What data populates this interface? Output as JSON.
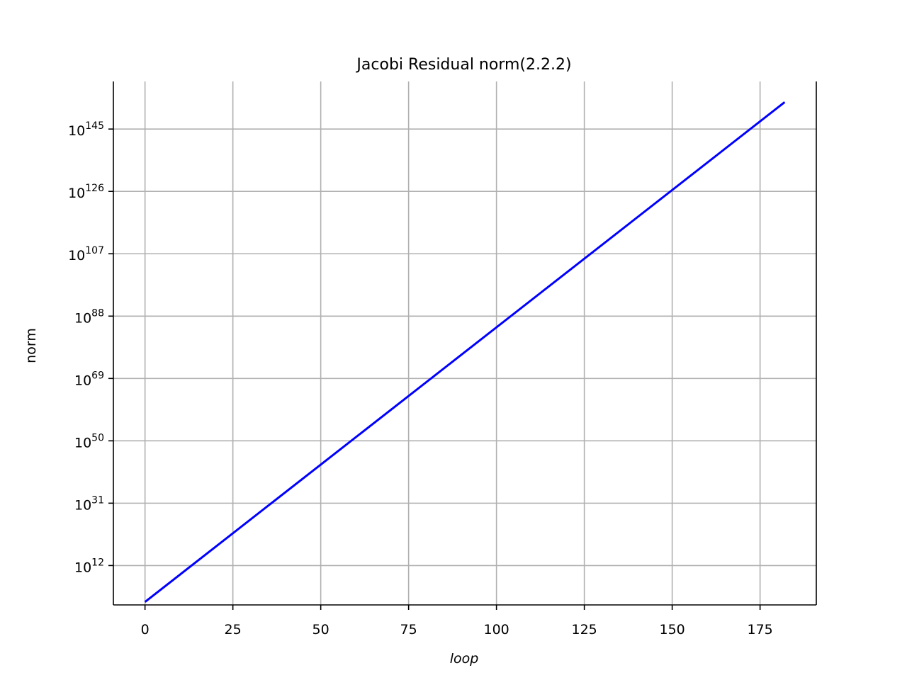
{
  "chart_data": {
    "type": "line",
    "title": "Jacobi Residual norm(2.2.2)",
    "xlabel": "loop",
    "ylabel": "norm",
    "yscale": "log",
    "grid": true,
    "xlim": [
      -9,
      191
    ],
    "ylim_log10": [
      0,
      159.5
    ],
    "x_ticks": [
      0,
      25,
      50,
      75,
      100,
      125,
      150,
      175
    ],
    "x_tick_labels": [
      "0",
      "25",
      "50",
      "75",
      "100",
      "125",
      "150",
      "175"
    ],
    "y_ticks_exp": [
      12,
      31,
      50,
      69,
      88,
      107,
      126,
      145
    ],
    "y_tick_labels": [
      {
        "base": "10",
        "exp": "12"
      },
      {
        "base": "10",
        "exp": "31"
      },
      {
        "base": "10",
        "exp": "50"
      },
      {
        "base": "10",
        "exp": "69"
      },
      {
        "base": "10",
        "exp": "88"
      },
      {
        "base": "10",
        "exp": "107"
      },
      {
        "base": "10",
        "exp": "126"
      },
      {
        "base": "10",
        "exp": "145"
      }
    ],
    "series": [
      {
        "color": "#0000ff",
        "x": [
          0,
          182
        ],
        "y_log10": [
          0.9,
          153.2
        ]
      }
    ]
  }
}
